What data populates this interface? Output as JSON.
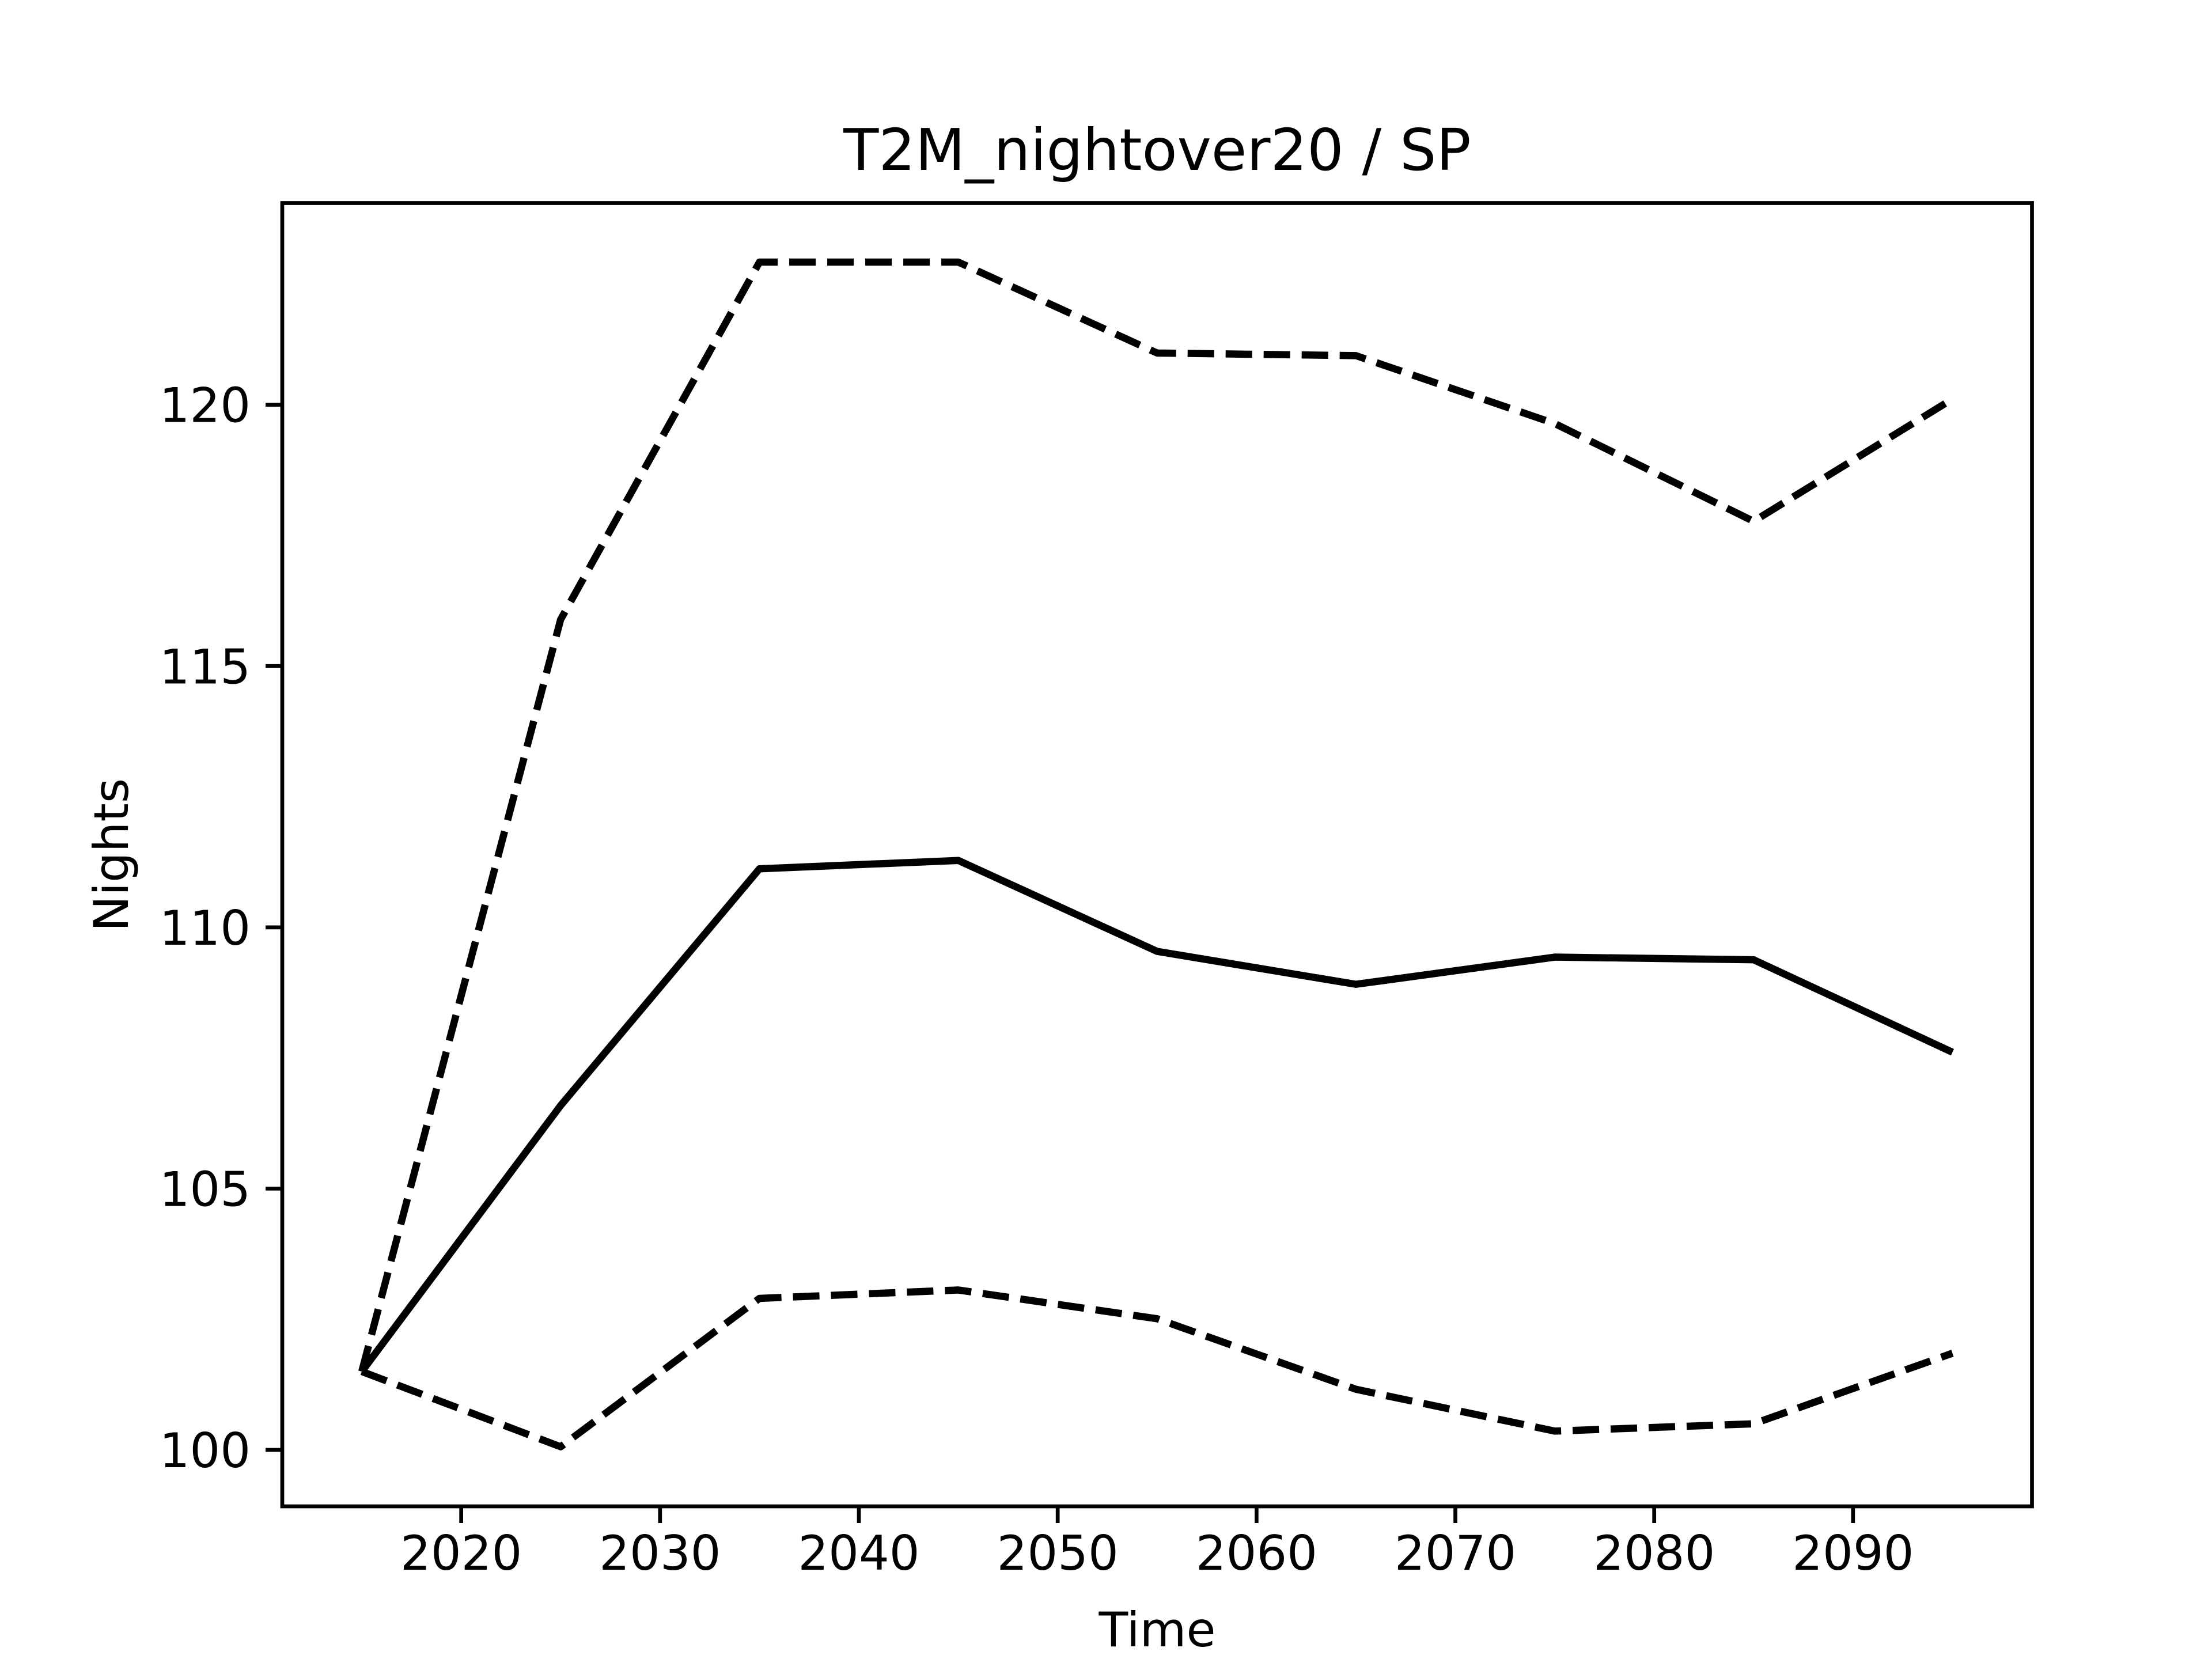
{
  "chart_data": {
    "type": "line",
    "title": "T2M_nightover20 / SP",
    "xlabel": "Time",
    "ylabel": "Nights",
    "x": [
      2015,
      2025,
      2035,
      2045,
      2055,
      2065,
      2075,
      2085,
      2095
    ],
    "series": [
      {
        "color": "#000000",
        "linestyle": "solid",
        "values": [
          101.5,
          106.59,
          111.12,
          111.28,
          109.54,
          108.91,
          109.43,
          109.38,
          107.61
        ]
      },
      {
        "color": "#000000",
        "linestyle": "dashed",
        "values": [
          101.5,
          115.89,
          122.73,
          122.73,
          120.99,
          120.94,
          119.64,
          117.77,
          120.11
        ]
      },
      {
        "color": "#000000",
        "linestyle": "dashed",
        "values": [
          101.5,
          100.06,
          102.9,
          103.06,
          102.51,
          101.16,
          100.36,
          100.5,
          101.85
        ]
      }
    ],
    "xlim": [
      2011,
      2099
    ],
    "xticks": [
      2020,
      2030,
      2040,
      2050,
      2060,
      2070,
      2080,
      2090
    ],
    "ylim": [
      98.92,
      123.86
    ],
    "yticks": [
      100,
      105,
      110,
      115,
      120
    ],
    "grid": false
  }
}
